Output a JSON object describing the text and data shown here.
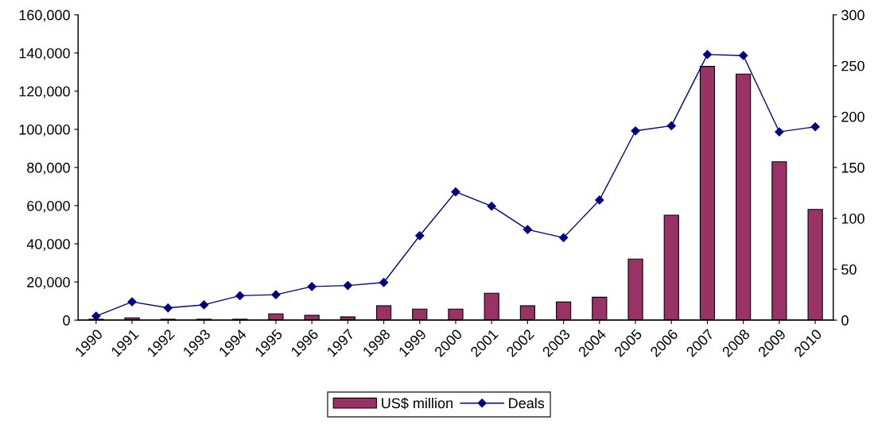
{
  "chart_data": {
    "type": "bar",
    "categories": [
      "1990",
      "1991",
      "1992",
      "1993",
      "1994",
      "1995",
      "1996",
      "1997",
      "1998",
      "1999",
      "2000",
      "2001",
      "2002",
      "2003",
      "2004",
      "2005",
      "2006",
      "2007",
      "2008",
      "2009",
      "2010"
    ],
    "series": [
      {
        "name": "US$ million",
        "color": "#993366",
        "values": [
          500,
          1200,
          500,
          500,
          500,
          3300,
          2500,
          1700,
          7500,
          5800,
          5800,
          14100,
          7500,
          9500,
          12000,
          32000,
          55000,
          133000,
          129000,
          83000,
          58000
        ]
      },
      {
        "name": "Deals",
        "color": "#000080",
        "type": "line",
        "axis": "y2",
        "marker": "diamond",
        "values": [
          4,
          18,
          12,
          15,
          24,
          25,
          33,
          34,
          37,
          83,
          126,
          112,
          89,
          81,
          118,
          186,
          191,
          261,
          260,
          185,
          190
        ]
      }
    ],
    "ylim": [
      0,
      160000
    ],
    "yticks": [
      {
        "value": 0,
        "label": "0"
      },
      {
        "value": 20000,
        "label": "20,000"
      },
      {
        "value": 40000,
        "label": "40,000"
      },
      {
        "value": 60000,
        "label": "60,000"
      },
      {
        "value": 80000,
        "label": "80,000"
      },
      {
        "value": 100000,
        "label": "100,000"
      },
      {
        "value": 120000,
        "label": "120,000"
      },
      {
        "value": 140000,
        "label": "140,000"
      },
      {
        "value": 160000,
        "label": "160,000"
      }
    ],
    "y2lim": [
      0,
      300
    ],
    "y2ticks": [
      0,
      50,
      100,
      150,
      200,
      250,
      300
    ],
    "grid": false,
    "legend": "bottom"
  }
}
